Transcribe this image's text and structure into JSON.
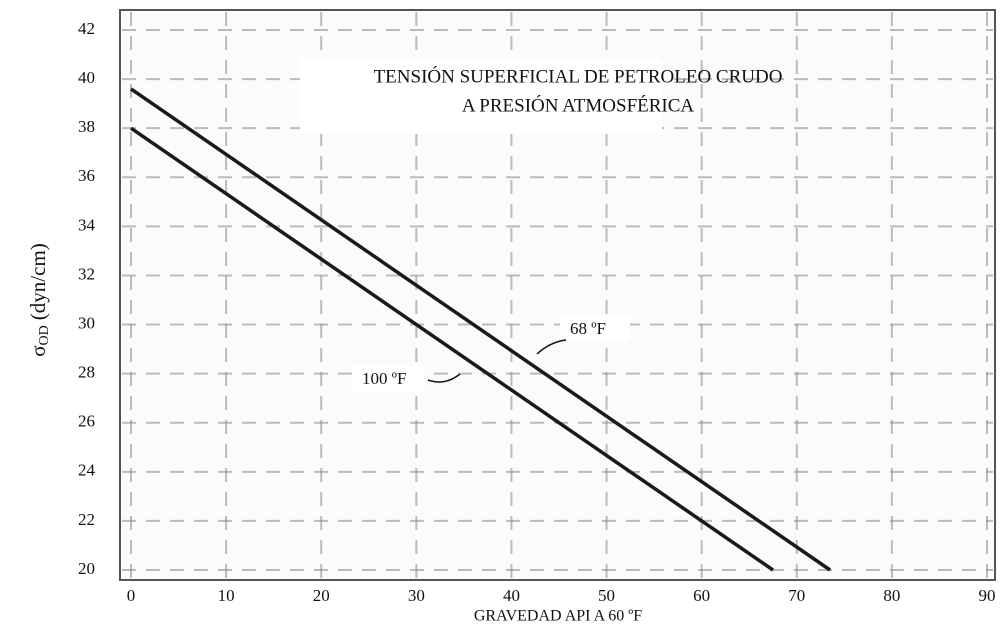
{
  "chart_data": {
    "type": "line",
    "title": [
      "TENSIÓN SUPERFICIAL DE PETROLEO CRUDO",
      "A PRESIÓN ATMOSFÉRICA"
    ],
    "xlabel": "GRAVEDAD API A 60 ºF",
    "ylabel": {
      "symbol": "σ",
      "subscript": "OD",
      "unit": "(dyn/cm)"
    },
    "series": [
      {
        "name": "68 ºF",
        "color": "#1a1a1a",
        "x": [
          0,
          73.5
        ],
        "values": [
          39.6,
          20
        ]
      },
      {
        "name": "100 ºF",
        "color": "#1a1a1a",
        "x": [
          0,
          67.5
        ],
        "values": [
          38,
          20
        ]
      }
    ],
    "xlim": [
      0,
      90
    ],
    "xticks": [
      0,
      10,
      20,
      30,
      40,
      50,
      60,
      70,
      80,
      90
    ],
    "ylim": [
      20,
      42
    ],
    "yticks": [
      20,
      22,
      24,
      26,
      28,
      30,
      32,
      34,
      36,
      38,
      40,
      42
    ],
    "grid": true
  }
}
